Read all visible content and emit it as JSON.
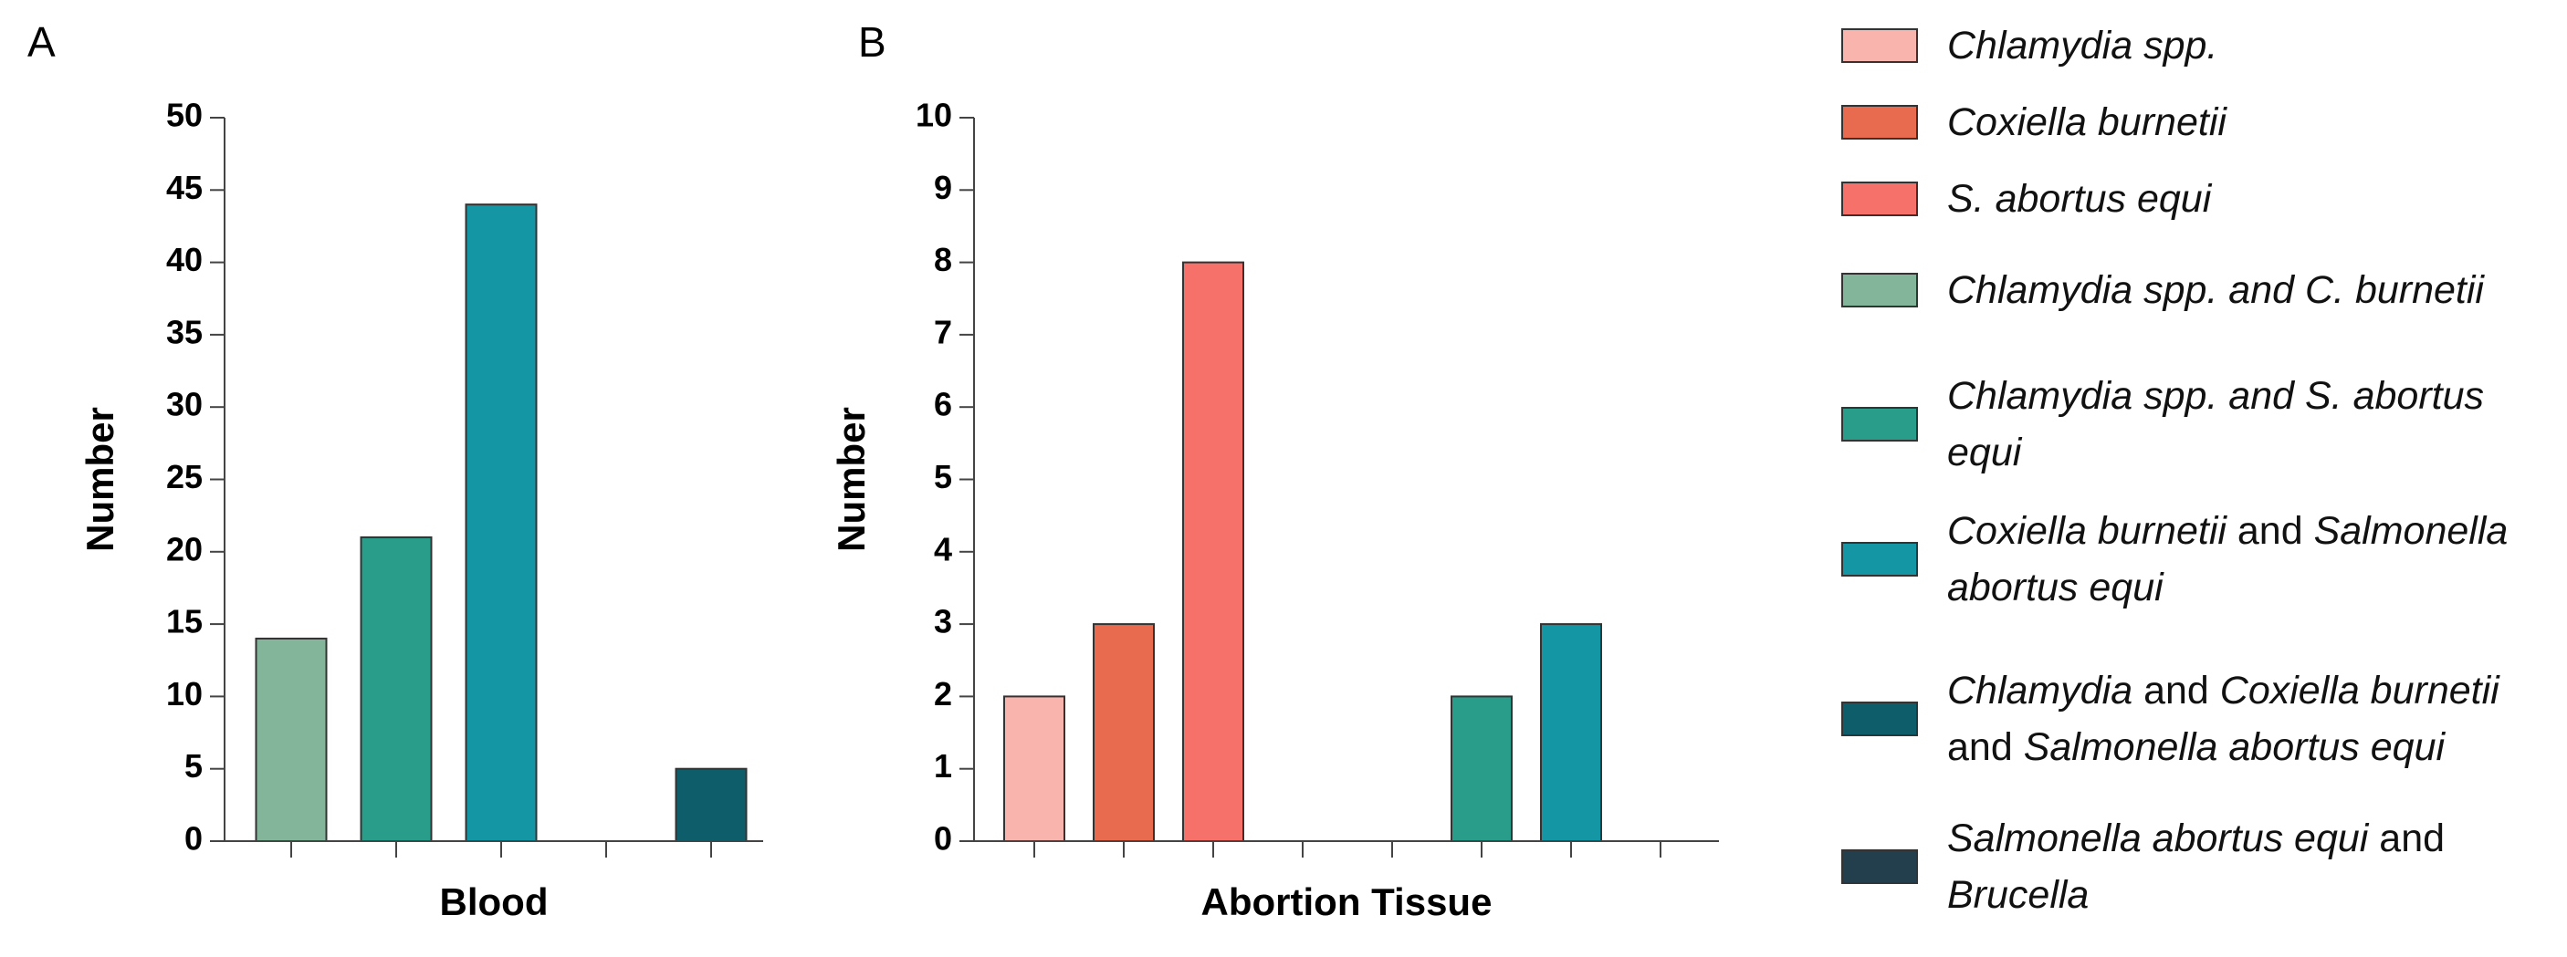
{
  "chart_data": [
    {
      "type": "bar",
      "panel": "A",
      "xlabel": "Blood",
      "ylabel": "Number",
      "categories": [
        null,
        null,
        null,
        null,
        null
      ],
      "values": [
        14,
        21,
        44,
        0,
        5
      ],
      "colors": [
        "#82b59a",
        "#2a9d8a",
        "#1496a4",
        "#233f4d",
        "#0e5d6a"
      ],
      "ylim": [
        0,
        50
      ],
      "yticks": [
        0,
        5,
        10,
        15,
        20,
        25,
        30,
        35,
        40,
        45,
        50
      ],
      "grid": false
    },
    {
      "type": "bar",
      "panel": "B",
      "xlabel": "Abortion Tissue",
      "ylabel": "Number",
      "categories": [
        null,
        null,
        null,
        null,
        null,
        null,
        null,
        null
      ],
      "values": [
        2,
        3,
        8,
        0,
        0,
        2,
        3,
        0
      ],
      "colors": [
        "#f9b4ae",
        "#e86b50",
        "#f7716b",
        "#82b59a",
        "#0e5d6a",
        "#2a9d8a",
        "#1496a4",
        "#233f4d"
      ],
      "ylim": [
        0,
        10
      ],
      "yticks": [
        0,
        1,
        2,
        3,
        4,
        5,
        6,
        7,
        8,
        9,
        10
      ],
      "grid": false
    }
  ],
  "legend": [
    {
      "color": "#f9b4ae",
      "parts": [
        {
          "text": "Chlamydia spp.",
          "italic": true
        }
      ]
    },
    {
      "color": "#e86b50",
      "parts": [
        {
          "text": "Coxiella burnetii",
          "italic": true
        }
      ]
    },
    {
      "color": "#f7716b",
      "parts": [
        {
          "text": "S. abortus equi",
          "italic": true
        }
      ]
    },
    {
      "color": "#82b59a",
      "parts": [
        {
          "text": "Chlamydia spp. and C. burnetii",
          "italic": true
        }
      ]
    },
    {
      "color": "#2a9d8a",
      "parts": [
        {
          "text": "Chlamydia spp. and S. abortus equi",
          "italic": true
        }
      ]
    },
    {
      "color": "#1496a4",
      "parts": [
        {
          "text": "Coxiella burnetii",
          "italic": true
        },
        {
          "text": " and ",
          "italic": false
        },
        {
          "text": "Salmonella abortus equi",
          "italic": true
        }
      ]
    },
    {
      "color": "#0e5d6a",
      "parts": [
        {
          "text": "Chlamydia",
          "italic": true
        },
        {
          "text": " and ",
          "italic": false
        },
        {
          "text": "Coxiella burnetii",
          "italic": true
        },
        {
          "text": " and ",
          "italic": false
        },
        {
          "text": "Salmonella abortus equi",
          "italic": true
        }
      ]
    },
    {
      "color": "#233f4d",
      "parts": [
        {
          "text": "Salmonella abortus equi",
          "italic": true
        },
        {
          "text": " and ",
          "italic": false
        },
        {
          "text": "Brucella",
          "italic": true
        }
      ]
    }
  ]
}
